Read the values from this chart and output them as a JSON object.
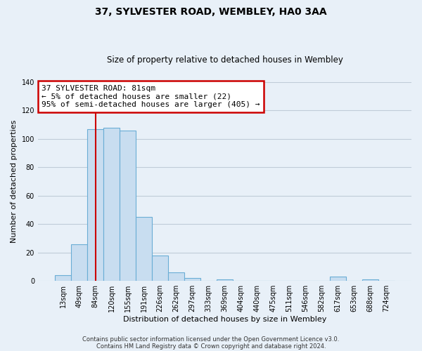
{
  "title": "37, SYLVESTER ROAD, WEMBLEY, HA0 3AA",
  "subtitle": "Size of property relative to detached houses in Wembley",
  "xlabel": "Distribution of detached houses by size in Wembley",
  "ylabel": "Number of detached properties",
  "bar_labels": [
    "13sqm",
    "49sqm",
    "84sqm",
    "120sqm",
    "155sqm",
    "191sqm",
    "226sqm",
    "262sqm",
    "297sqm",
    "333sqm",
    "369sqm",
    "404sqm",
    "440sqm",
    "475sqm",
    "511sqm",
    "546sqm",
    "582sqm",
    "617sqm",
    "653sqm",
    "688sqm",
    "724sqm"
  ],
  "bar_values": [
    4,
    26,
    107,
    108,
    106,
    45,
    18,
    6,
    2,
    0,
    1,
    0,
    0,
    0,
    0,
    0,
    0,
    3,
    0,
    1,
    0
  ],
  "bar_color": "#c8ddf0",
  "bar_edge_color": "#6aadd5",
  "vline_x_idx": 2,
  "vline_color": "#cc0000",
  "annotation_lines": [
    "37 SYLVESTER ROAD: 81sqm",
    "← 5% of detached houses are smaller (22)",
    "95% of semi-detached houses are larger (405) →"
  ],
  "annotation_box_color": "#ffffff",
  "annotation_box_edge_color": "#cc0000",
  "ylim": [
    0,
    140
  ],
  "yticks": [
    0,
    20,
    40,
    60,
    80,
    100,
    120,
    140
  ],
  "footer_lines": [
    "Contains HM Land Registry data © Crown copyright and database right 2024.",
    "Contains public sector information licensed under the Open Government Licence v3.0."
  ],
  "bg_color": "#e8f0f8",
  "plot_bg_color": "#e8f0f8",
  "grid_color": "#c0ccd8",
  "title_fontsize": 10,
  "subtitle_fontsize": 8.5,
  "axis_label_fontsize": 8,
  "tick_fontsize": 7,
  "footer_fontsize": 6
}
